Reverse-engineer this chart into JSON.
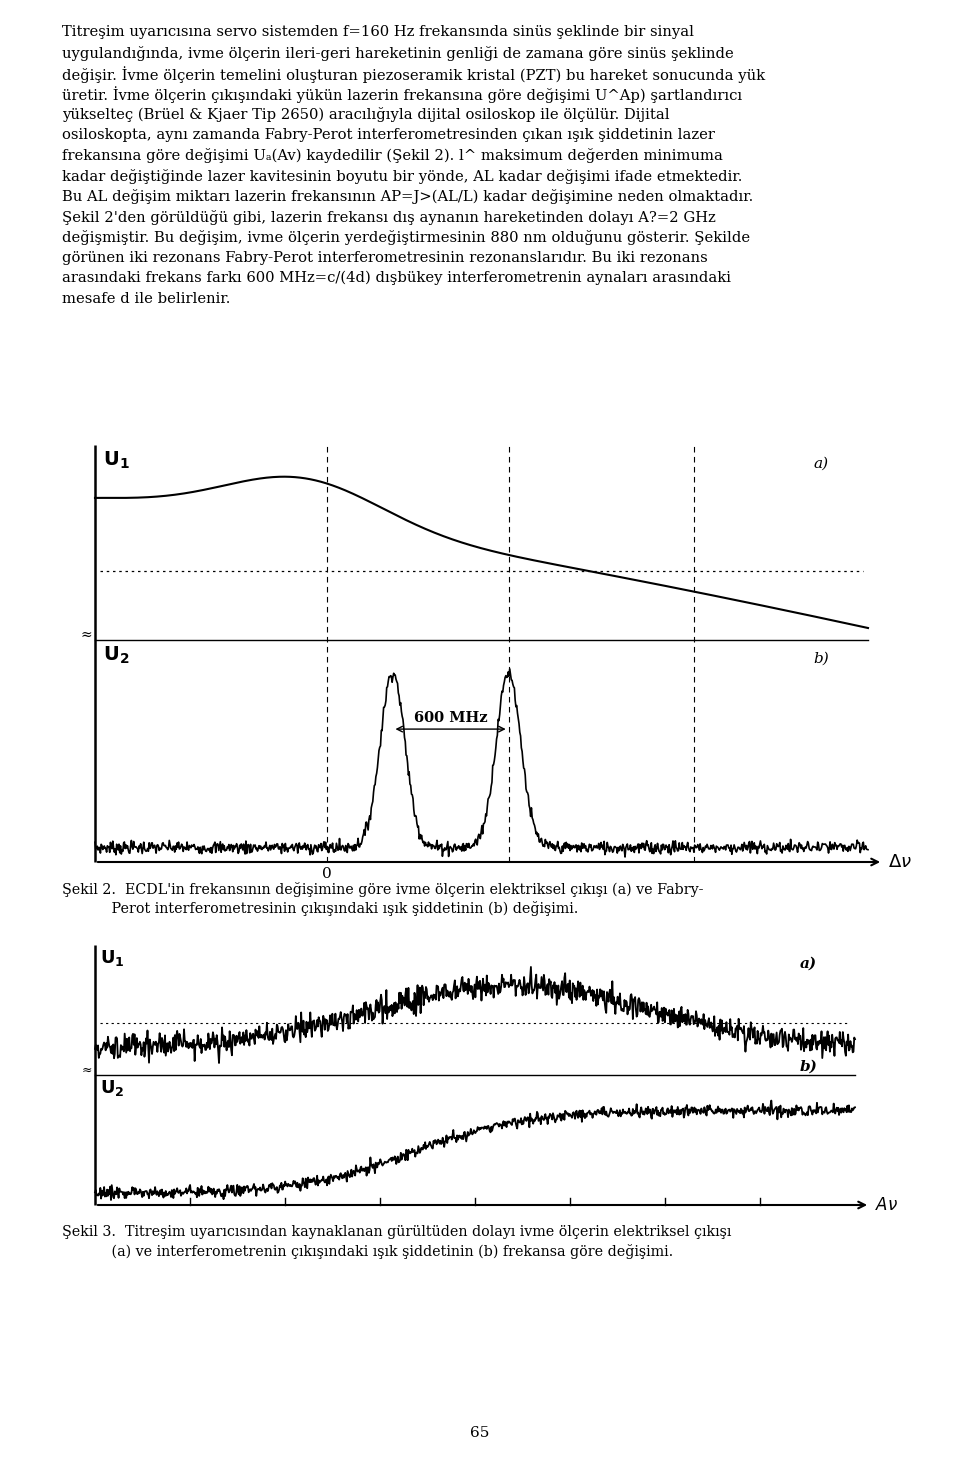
{
  "background_color": "#ffffff",
  "text_color": "#000000",
  "page_width": 9.6,
  "page_height": 14.7,
  "dpi": 100,
  "para_lines": [
    "Titreşim uyarıcısına servo sistemden f=160 Hz frekansında sinüs şeklinde bir sinyal",
    "uygulandığında, ivme ölçerin ileri-geri hareketinin genliği de zamana göre sinüs şeklinde",
    "değişir. İvme ölçerin temelini oluşturan piezoseramik kristal (PZT) bu hareket sonucunda yük",
    "üretir. İvme ölçerin çıkışındaki yükün lazerin frekansına göre değişimi U^Ap) şartlandırıcı",
    "yükselteç (Brüel & Kjaer Tip 2650) aracılığıyla dijital osiloskop ile ölçülür. Dijital",
    "osiloskopta, aynı zamanda Fabry-Perot interferometresinden çıkan ışık şiddetinin lazer",
    "frekansına göre değişimi Uₐ(Av) kaydedilir (Şekil 2). l^ maksimum değerden minimuma",
    "kadar değiştiğinde lazer kavitesinin boyutu bir yönde, AL kadar değişimi ifade etmektedir.",
    "Bu AL değişim miktarı lazerin frekansının AP=J>(AL/L) kadar değişimine neden olmaktadır.",
    "Şekil 2'den görüldüğü gibi, lazerin frekansı dış aynanın hareketinden dolayı A?=2 GHz",
    "değişmiştir. Bu değişim, ivme ölçerin yerdeğiştirmesinin 880 nm olduğunu gösterir. Şekilde",
    "görünen iki rezonans Fabry-Perot interferometresinin rezonanslarıdır. Bu iki rezonans",
    "arasındaki frekans farkı 600 MHz=c/(4d) dışbükey interferometrenin aynaları arasındaki",
    "mesafe d ile belirlenir."
  ],
  "fig2_caption_line1": "Şekil 2.  ECDL'in frekansının değişimine göre ivme ölçerin elektriksel çıkışı (a) ve Fabry-",
  "fig2_caption_line2": "           Perot interferometresinin çıkışındaki ışık şiddetinin (b) değişimi.",
  "fig3_caption_line1": "Şekil 3.  Titreşim uyarıcısından kaynaklanan gürültüden dolayı ivme ölçerin elektriksel çıkışı",
  "fig3_caption_line2": "           (a) ve interferometrenin çıkışındaki ışık şiddetinin (b) frekansa göre değişimi.",
  "page_number": "65"
}
